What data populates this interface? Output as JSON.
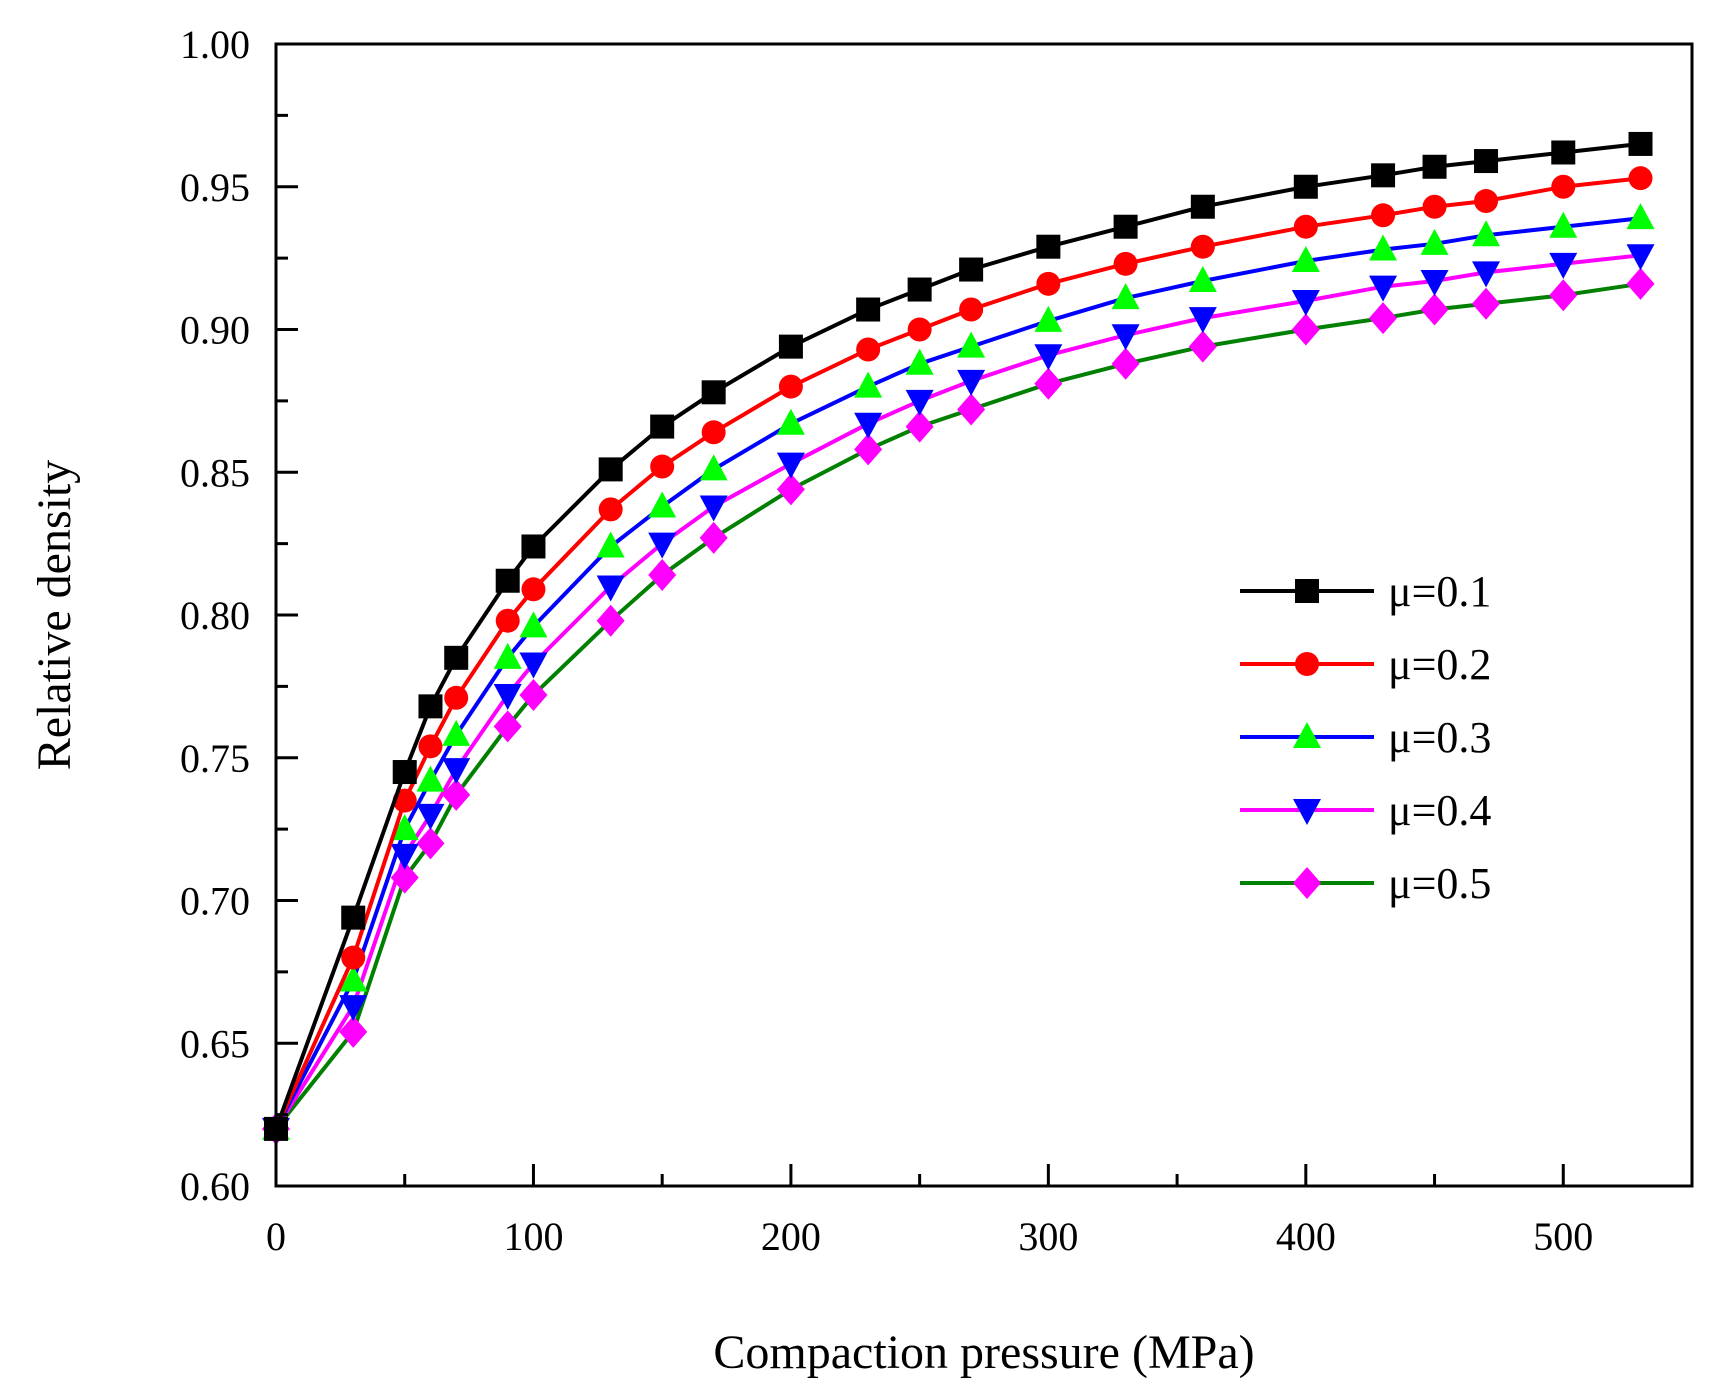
{
  "chart_data": {
    "type": "line",
    "title": "",
    "xlabel": "Compaction pressure (MPa)",
    "ylabel": "Relative density",
    "xlim": [
      0,
      550
    ],
    "ylim": [
      0.6,
      1.0
    ],
    "xticks": [
      0,
      100,
      200,
      300,
      400,
      500
    ],
    "xtick_labels": [
      "0",
      "100",
      "200",
      "300",
      "400",
      "500"
    ],
    "yticks": [
      0.6,
      0.65,
      0.7,
      0.75,
      0.8,
      0.85,
      0.9,
      0.95,
      1.0
    ],
    "ytick_labels": [
      "0.60",
      "0.65",
      "0.70",
      "0.75",
      "0.80",
      "0.85",
      "0.90",
      "0.95",
      "1.00"
    ],
    "grid": false,
    "legend_position": "center-right",
    "x": [
      0,
      30,
      50,
      60,
      70,
      90,
      100,
      130,
      150,
      170,
      200,
      230,
      250,
      270,
      300,
      330,
      360,
      400,
      430,
      450,
      470,
      500,
      530
    ],
    "series": [
      {
        "name": "μ=0.1",
        "line_color": "#000000",
        "marker_color": "#000000",
        "marker": "square",
        "values": [
          0.62,
          0.694,
          0.745,
          0.768,
          0.785,
          0.812,
          0.824,
          0.851,
          0.866,
          0.878,
          0.894,
          0.907,
          0.914,
          0.921,
          0.929,
          0.936,
          0.943,
          0.95,
          0.954,
          0.957,
          0.959,
          0.962,
          0.965
        ]
      },
      {
        "name": "μ=0.2",
        "line_color": "#ff0000",
        "marker_color": "#ff0000",
        "marker": "circle",
        "values": [
          0.62,
          0.68,
          0.735,
          0.754,
          0.771,
          0.798,
          0.809,
          0.837,
          0.852,
          0.864,
          0.88,
          0.893,
          0.9,
          0.907,
          0.916,
          0.923,
          0.929,
          0.936,
          0.94,
          0.943,
          0.945,
          0.95,
          0.953
        ]
      },
      {
        "name": "μ=0.3",
        "line_color": "#0000ff",
        "marker_color": "#00ff00",
        "marker": "triangle-up",
        "values": [
          0.62,
          0.672,
          0.725,
          0.742,
          0.758,
          0.785,
          0.796,
          0.824,
          0.838,
          0.851,
          0.867,
          0.88,
          0.888,
          0.894,
          0.903,
          0.911,
          0.917,
          0.924,
          0.928,
          0.93,
          0.933,
          0.936,
          0.939
        ]
      },
      {
        "name": "μ=0.4",
        "line_color": "#ff00ff",
        "marker_color": "#0000ff",
        "marker": "triangle-down",
        "values": [
          0.62,
          0.663,
          0.716,
          0.73,
          0.746,
          0.772,
          0.783,
          0.81,
          0.825,
          0.838,
          0.853,
          0.867,
          0.875,
          0.882,
          0.891,
          0.898,
          0.904,
          0.91,
          0.915,
          0.917,
          0.92,
          0.923,
          0.926
        ]
      },
      {
        "name": "μ=0.5",
        "line_color": "#008000",
        "marker_color": "#ff00ff",
        "marker": "diamond",
        "values": [
          0.62,
          0.654,
          0.708,
          0.72,
          0.737,
          0.761,
          0.772,
          0.798,
          0.814,
          0.827,
          0.844,
          0.858,
          0.866,
          0.872,
          0.881,
          0.888,
          0.894,
          0.9,
          0.904,
          0.907,
          0.909,
          0.912,
          0.916
        ]
      }
    ]
  }
}
